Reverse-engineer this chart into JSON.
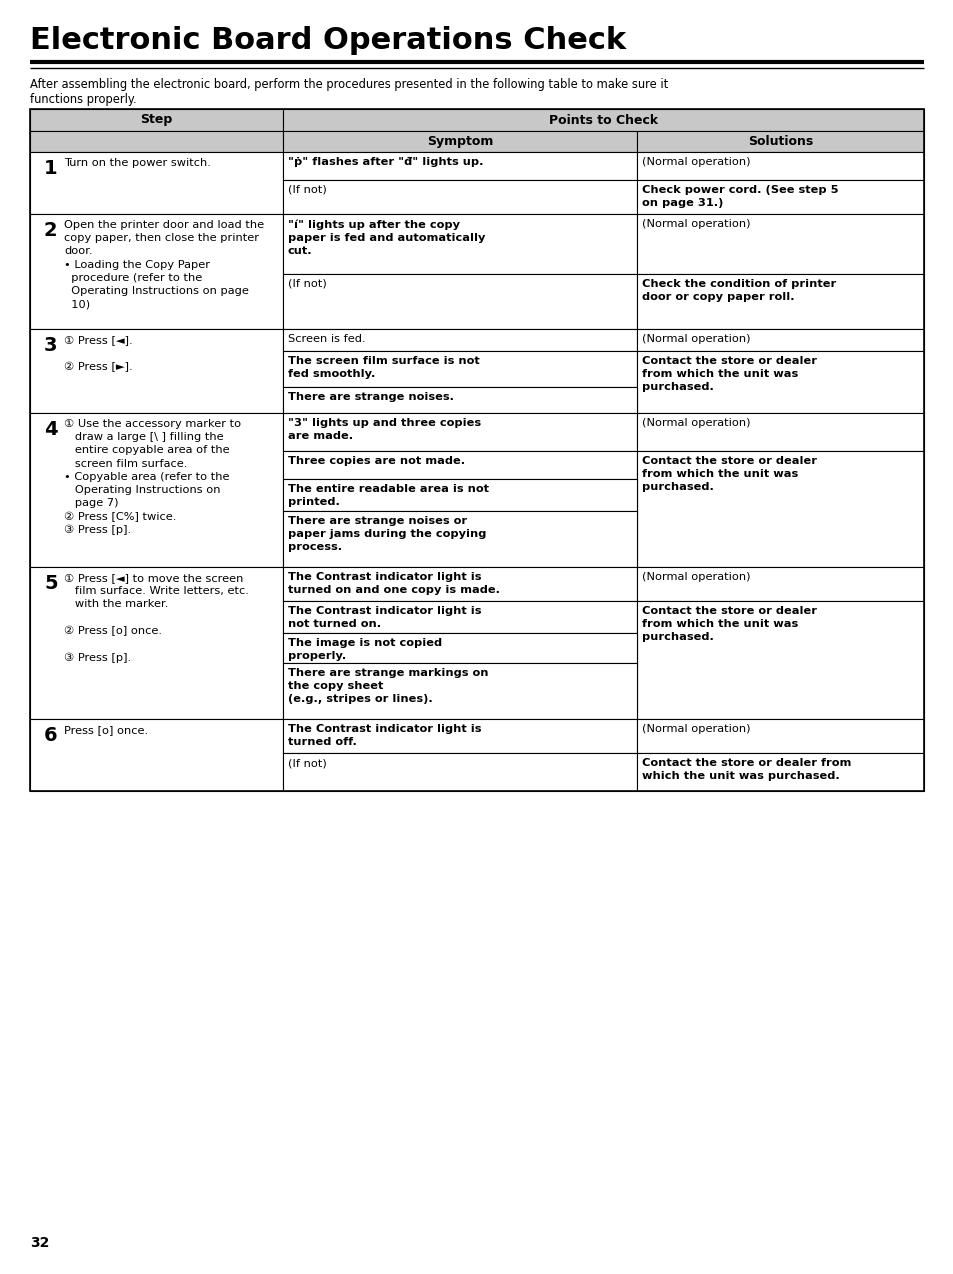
{
  "title": "Electronic Board Operations Check",
  "intro_line1": "After assembling the electronic board, perform the procedures presented in the following table to make sure it",
  "intro_line2": "functions properly.",
  "page_number": "32",
  "header_bg": "#c8c8c8",
  "rows": [
    {
      "step_num": "1",
      "step_lines": "Turn on the power switch.",
      "sub_rows": [
        {
          "symptom": "\"ṗ\" flashes after \"đ\" lights up.",
          "sym_bold": true,
          "solution": "(Normal operation)",
          "sol_bold": false
        },
        {
          "symptom": "(If not)",
          "sym_bold": false,
          "solution": "Check power cord. (See step 5\non page 31.)",
          "sol_bold": true
        }
      ],
      "sol_merge": []
    },
    {
      "step_num": "2",
      "step_lines": "Open the printer door and load the\ncopy paper, then close the printer\ndoor.\n• Loading the Copy Paper\n  procedure (refer to the\n  Operating Instructions on page\n  10)",
      "sub_rows": [
        {
          "symptom": "\"í\" lights up after the copy\npaper is fed and automatically\ncut.",
          "sym_bold": true,
          "solution": "(Normal operation)",
          "sol_bold": false
        },
        {
          "symptom": "(If not)",
          "sym_bold": false,
          "solution": "Check the condition of printer\ndoor or copy paper roll.",
          "sol_bold": true
        }
      ],
      "sol_merge": []
    },
    {
      "step_num": "3",
      "step_lines": "① Press [◄].\n\n② Press [►].",
      "sub_rows": [
        {
          "symptom": "Screen is fed.",
          "sym_bold": false,
          "solution": "(Normal operation)",
          "sol_bold": false
        },
        {
          "symptom": "The screen film surface is not\nfed smoothly.",
          "sym_bold": true,
          "solution": "Contact the store or dealer\nfrom which the unit was\npurchased.",
          "sol_bold": true
        },
        {
          "symptom": "There are strange noises.",
          "sym_bold": true,
          "solution": "",
          "sol_bold": false
        }
      ],
      "sol_merge": [
        [
          1,
          2
        ]
      ]
    },
    {
      "step_num": "4",
      "step_lines": "① Use the accessory marker to\n   draw a large [\\ ] filling the\n   entire copyable area of the\n   screen film surface.\n• Copyable area (refer to the\n   Operating Instructions on\n   page 7)\n② Press [C%] twice.\n③ Press [p].",
      "sub_rows": [
        {
          "symptom": "\"3\" lights up and three copies\nare made.",
          "sym_bold": true,
          "solution": "(Normal operation)",
          "sol_bold": false
        },
        {
          "symptom": "Three copies are not made.",
          "sym_bold": true,
          "solution": "Contact the store or dealer\nfrom which the unit was\npurchased.",
          "sol_bold": true
        },
        {
          "symptom": "The entire readable area is not\nprinted.",
          "sym_bold": true,
          "solution": "",
          "sol_bold": false
        },
        {
          "symptom": "There are strange noises or\npaper jams during the copying\nprocess.",
          "sym_bold": true,
          "solution": "",
          "sol_bold": false
        }
      ],
      "sol_merge": [
        [
          1,
          3
        ]
      ]
    },
    {
      "step_num": "5",
      "step_lines": "① Press [◄] to move the screen\n   film surface. Write letters, etc.\n   with the marker.\n\n② Press [o] once.\n\n③ Press [p].",
      "sub_rows": [
        {
          "symptom": "The Contrast indicator light is\nturned on and one copy is made.",
          "sym_bold": true,
          "solution": "(Normal operation)",
          "sol_bold": false
        },
        {
          "symptom": "The Contrast indicator light is\nnot turned on.",
          "sym_bold": true,
          "solution": "Contact the store or dealer\nfrom which the unit was\npurchased.",
          "sol_bold": true
        },
        {
          "symptom": "The image is not copied\nproperly.",
          "sym_bold": true,
          "solution": "",
          "sol_bold": false
        },
        {
          "symptom": "There are strange markings on\nthe copy sheet\n(e.g., stripes or lines).",
          "sym_bold": true,
          "solution": "",
          "sol_bold": false
        }
      ],
      "sol_merge": [
        [
          1,
          3
        ]
      ]
    },
    {
      "step_num": "6",
      "step_lines": "Press [o] once.",
      "sub_rows": [
        {
          "symptom": "The Contrast indicator light is\nturned off.",
          "sym_bold": true,
          "solution": "(Normal operation)",
          "sol_bold": false
        },
        {
          "symptom": "(If not)",
          "sym_bold": false,
          "solution": "Contact the store or dealer from\nwhich the unit was purchased.",
          "sol_bold": true
        }
      ],
      "sol_merge": []
    }
  ]
}
